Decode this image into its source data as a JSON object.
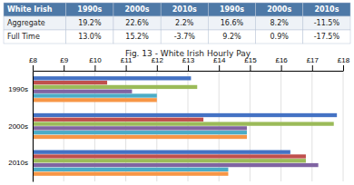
{
  "chart_data": [
    {
      "type": "table",
      "columns": [
        "White Irish",
        "1990s",
        "2000s",
        "2010s",
        "1990s",
        "2000s",
        "2010s"
      ],
      "rows": [
        [
          "Aggregate",
          "19.2%",
          "22.6%",
          "2.2%",
          "16.6%",
          "8.2%",
          "-11.5%"
        ],
        [
          "Full Time",
          "13.0%",
          "15.2%",
          "-3.7%",
          "9.2%",
          "0.9%",
          "-17.5%"
        ]
      ]
    },
    {
      "type": "bar",
      "orientation": "horizontal",
      "title": "Fig. 13 - White Irish Hourly Pay",
      "categories": [
        "1990s",
        "2000s",
        "2010s"
      ],
      "series": [
        {
          "color": "#4472c4",
          "values": [
            13.1,
            17.8,
            16.3
          ]
        },
        {
          "color": "#c0504d",
          "values": [
            10.4,
            13.5,
            16.8
          ]
        },
        {
          "color": "#9bbb59",
          "values": [
            13.3,
            17.7,
            16.8
          ]
        },
        {
          "color": "#8064a2",
          "values": [
            11.2,
            14.9,
            17.2
          ]
        },
        {
          "color": "#4bacc6",
          "values": [
            12.0,
            14.9,
            14.3
          ]
        },
        {
          "color": "#f79646",
          "values": [
            12.0,
            14.9,
            14.3
          ]
        }
      ],
      "xlim": [
        8,
        18
      ],
      "xticks": [
        {
          "value": 8,
          "label": "£8"
        },
        {
          "value": 9,
          "label": "£9"
        },
        {
          "value": 10,
          "label": "£10"
        },
        {
          "value": 11,
          "label": "£11"
        },
        {
          "value": 12,
          "label": "£12"
        },
        {
          "value": 13,
          "label": "£13"
        },
        {
          "value": 14,
          "label": "£14"
        },
        {
          "value": 15,
          "label": "£15"
        },
        {
          "value": 16,
          "label": "£16"
        },
        {
          "value": 17,
          "label": "£17"
        },
        {
          "value": 18,
          "label": "£18"
        }
      ],
      "grid": true
    }
  ]
}
